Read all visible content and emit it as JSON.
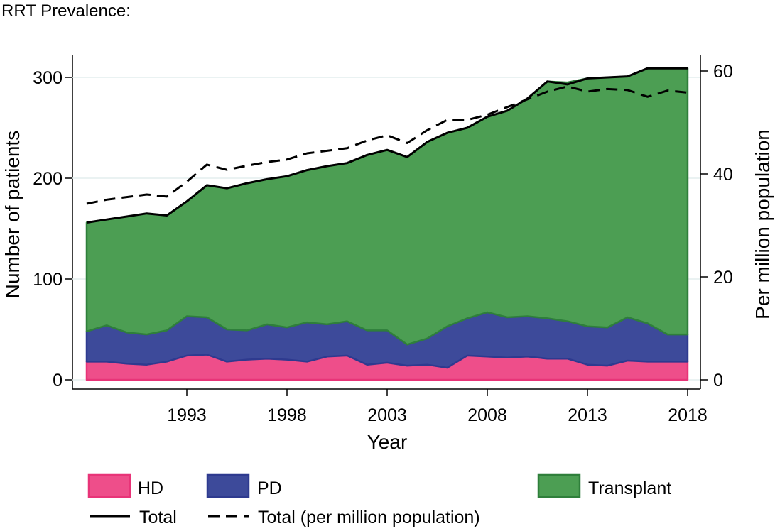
{
  "title": "RRT Prevalence:",
  "chart_data": {
    "type": "area",
    "title": "RRT Prevalence:",
    "xlabel": "Year",
    "ylabel": "Number of patients",
    "y2label": "Per million population",
    "xlim": [
      1987,
      2018
    ],
    "ylim": [
      0,
      320
    ],
    "y2lim": [
      0,
      62
    ],
    "x_ticks": [
      "1993",
      "1998",
      "2003",
      "2008",
      "2013",
      "2018"
    ],
    "y_ticks": [
      "0",
      "100",
      "200",
      "300"
    ],
    "y2_ticks": [
      "0",
      "20",
      "40",
      "60"
    ],
    "grid": true,
    "legend_position": "bottom",
    "x": [
      1988,
      1989,
      1990,
      1991,
      1992,
      1993,
      1994,
      1995,
      1996,
      1997,
      1998,
      1999,
      2000,
      2001,
      2002,
      2003,
      2004,
      2005,
      2006,
      2007,
      2008,
      2009,
      2010,
      2011,
      2012,
      2013,
      2014,
      2015,
      2016,
      2017,
      2018
    ],
    "series": [
      {
        "name": "HD",
        "kind": "stacked-area",
        "color": "#ee4e8a",
        "values": [
          18,
          18,
          16,
          15,
          18,
          24,
          25,
          18,
          20,
          21,
          20,
          18,
          23,
          24,
          15,
          17,
          14,
          15,
          12,
          24,
          23,
          22,
          23,
          21,
          21,
          15,
          14,
          19,
          18,
          18,
          18
        ]
      },
      {
        "name": "PD",
        "kind": "stacked-area",
        "color": "#3d4a9a",
        "values": [
          30,
          36,
          31,
          30,
          31,
          39,
          37,
          32,
          29,
          34,
          32,
          39,
          32,
          34,
          34,
          32,
          21,
          26,
          41,
          37,
          44,
          40,
          40,
          40,
          37,
          38,
          38,
          43,
          38,
          27,
          27
        ]
      },
      {
        "name": "Transplant",
        "kind": "stacked-area",
        "color": "#4c9e53",
        "values": [
          108,
          105,
          115,
          120,
          114,
          114,
          131,
          140,
          146,
          144,
          150,
          151,
          157,
          157,
          174,
          179,
          186,
          195,
          192,
          189,
          194,
          205,
          216,
          235,
          237,
          246,
          248,
          239,
          253,
          264,
          264
        ]
      },
      {
        "name": "Total",
        "kind": "line",
        "color": "#000000",
        "values": [
          156,
          159,
          162,
          165,
          163,
          177,
          193,
          190,
          195,
          199,
          202,
          208,
          212,
          215,
          223,
          228,
          221,
          236,
          245,
          250,
          261,
          267,
          279,
          296,
          293,
          299,
          300,
          301,
          309,
          309,
          309
        ]
      },
      {
        "name": "Total (per million population)",
        "kind": "dashed-line",
        "axis": "right",
        "color": "#000000",
        "values": [
          34.2,
          35.0,
          35.5,
          36.0,
          35.6,
          38.5,
          41.8,
          40.8,
          41.6,
          42.3,
          42.8,
          44.0,
          44.5,
          45.0,
          46.5,
          47.5,
          46.0,
          48.5,
          50.5,
          50.5,
          51.5,
          53.0,
          54.5,
          56.0,
          57.0,
          56.0,
          56.5,
          56.3,
          55.0,
          56.2,
          55.8
        ]
      }
    ]
  }
}
